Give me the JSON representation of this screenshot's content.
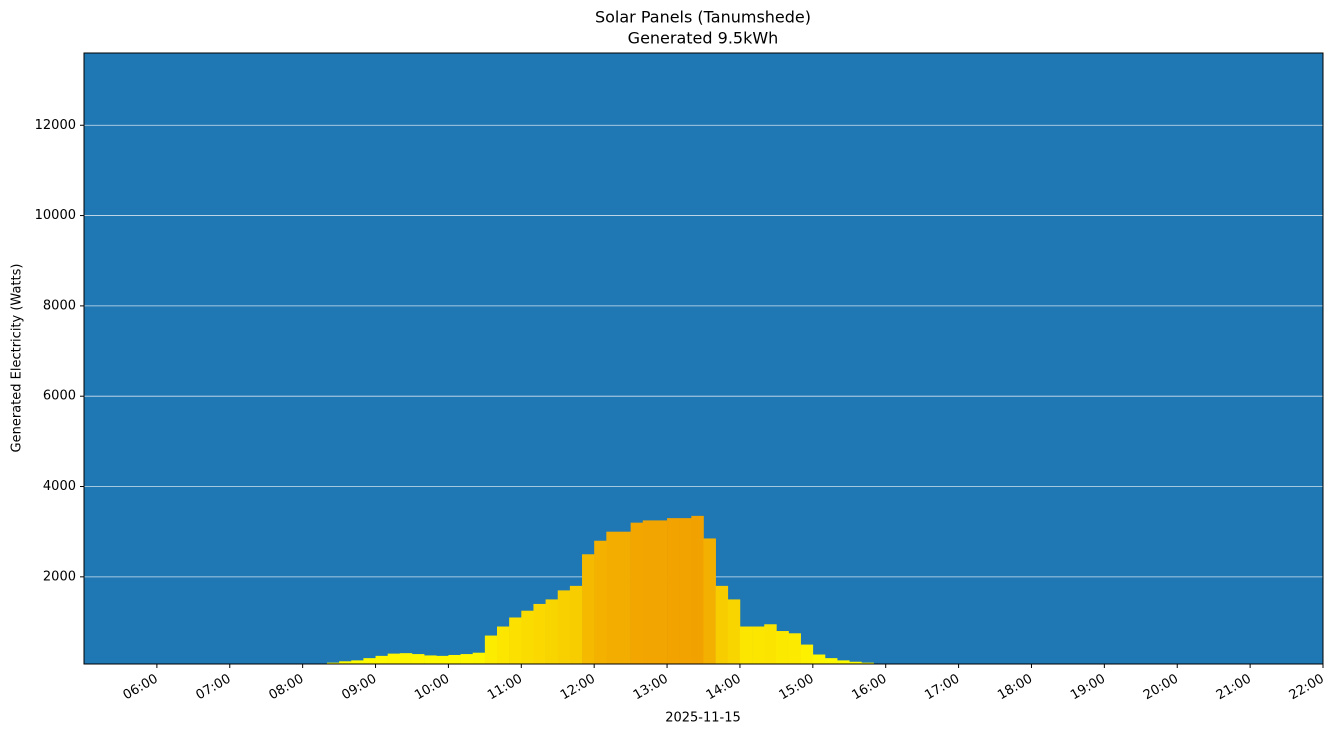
{
  "chart_data": {
    "type": "bar",
    "title": "Solar Panels (Tanumshede)",
    "subtitle": "Generated 9.5kWh",
    "xlabel": "2025-11-15",
    "ylabel": "Generated Electricity (Watts)",
    "x": [
      "08:10",
      "08:20",
      "08:30",
      "08:40",
      "08:50",
      "09:00",
      "09:10",
      "09:20",
      "09:30",
      "09:40",
      "09:50",
      "10:00",
      "10:10",
      "10:20",
      "10:30",
      "10:40",
      "10:50",
      "11:00",
      "11:10",
      "11:20",
      "11:30",
      "11:40",
      "11:50",
      "12:00",
      "12:10",
      "12:20",
      "12:30",
      "12:40",
      "12:50",
      "13:00",
      "13:10",
      "13:20",
      "13:30",
      "13:40",
      "13:50",
      "14:00",
      "14:10",
      "14:20",
      "14:30",
      "14:40",
      "14:50",
      "15:00",
      "15:10",
      "15:20",
      "15:30",
      "15:40",
      "15:50",
      "16:00",
      "16:10",
      "16:20"
    ],
    "values": [
      80,
      100,
      130,
      150,
      200,
      250,
      300,
      310,
      290,
      260,
      250,
      270,
      290,
      320,
      700,
      900,
      1100,
      1250,
      1400,
      1500,
      1700,
      1800,
      2500,
      2800,
      3000,
      3000,
      3200,
      3250,
      3250,
      3300,
      3300,
      3350,
      2850,
      1800,
      1500,
      900,
      900,
      950,
      800,
      750,
      500,
      280,
      200,
      150,
      120,
      100,
      80,
      80,
      75,
      72
    ],
    "colors": [
      "#ffff00",
      "#f2a200"
    ],
    "background": "#1f77b4",
    "xlim": [
      "05:00",
      "22:00"
    ],
    "xticks": [
      "06:00",
      "07:00",
      "08:00",
      "09:00",
      "10:00",
      "11:00",
      "12:00",
      "13:00",
      "14:00",
      "15:00",
      "16:00",
      "17:00",
      "18:00",
      "19:00",
      "20:00",
      "21:00",
      "22:00"
    ],
    "ylim": [
      70,
      13600
    ],
    "yticks": [
      2000,
      4000,
      6000,
      8000,
      10000,
      12000
    ],
    "grid": true
  }
}
